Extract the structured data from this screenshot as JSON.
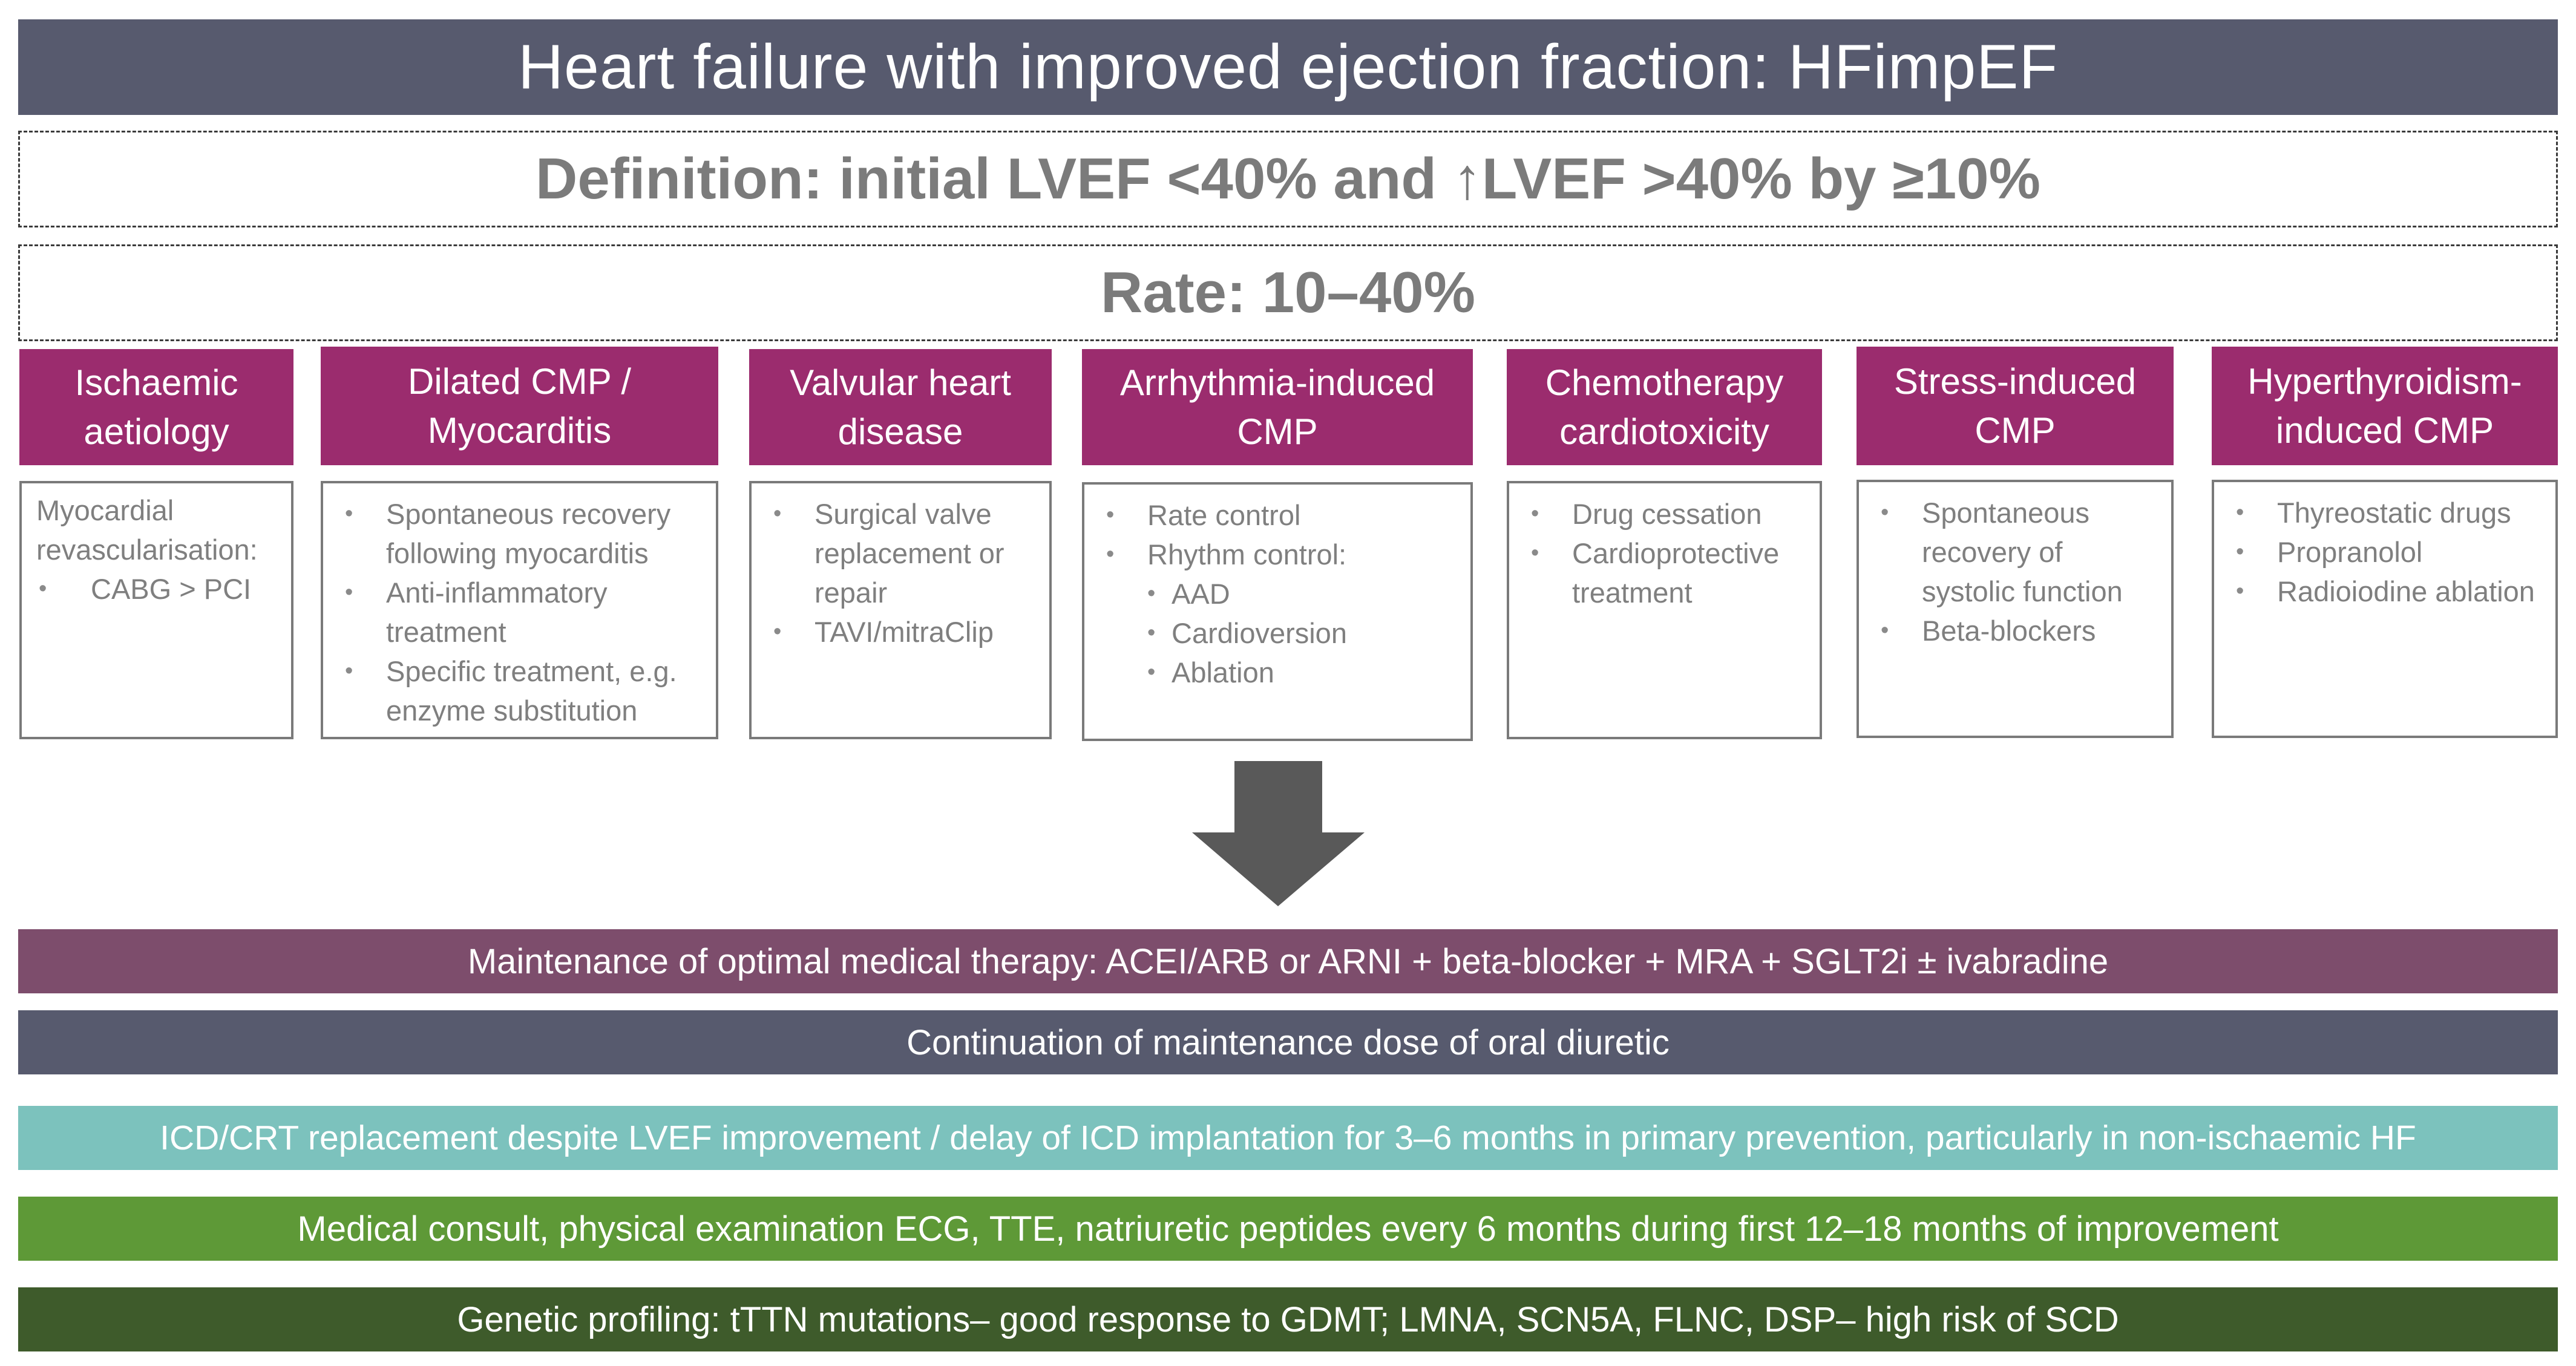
{
  "title": "Heart failure with improved ejection fraction: HFimpEF",
  "definition": "Definition: initial LVEF <40% and ↑LVEF >40% by ≥10%",
  "rate": "Rate: 10–40%",
  "categories": [
    {
      "header": [
        "Ischaemic",
        "aetiology"
      ],
      "intro": [
        "Myocardial",
        "revascularisation:"
      ],
      "items": [
        "CABG > PCI"
      ]
    },
    {
      "header": [
        "Dilated CMP /",
        "Myocarditis"
      ],
      "items": [
        "Spontaneous recovery following myocarditis",
        "Anti-inflammatory treatment",
        "Specific treatment, e.g. enzyme substitution"
      ]
    },
    {
      "header": [
        "Valvular heart",
        "disease"
      ],
      "items": [
        "Surgical valve replacement or repair",
        "TAVI/mitraClip"
      ]
    },
    {
      "header": [
        "Arrhythmia-induced",
        "CMP"
      ],
      "items": [
        "Rate control",
        "Rhythm control:"
      ],
      "subitems": [
        "AAD",
        "Cardioversion",
        "Ablation"
      ]
    },
    {
      "header": [
        "Chemotherapy",
        "cardiotoxicity"
      ],
      "items": [
        "Drug cessation",
        "Cardioprotective treatment"
      ]
    },
    {
      "header": [
        "Stress-induced",
        "CMP"
      ],
      "items": [
        "Spontaneous recovery of systolic function",
        "Beta-blockers"
      ]
    },
    {
      "header": [
        "Hyperthyroidism-",
        "induced CMP"
      ],
      "items": [
        "Thyreostatic drugs",
        "Propranolol",
        "Radioiodine ablation"
      ]
    }
  ],
  "bands": {
    "omt": "Maintenance of optimal medical therapy: ACEI/ARB or ARNI + beta-blocker + MRA + SGLT2i ± ivabradine",
    "diuretic": "Continuation of maintenance dose of oral diuretic",
    "icd": "ICD/CRT replacement despite LVEF improvement / delay of ICD implantation for 3–6 months in primary prevention, particularly in non-ischaemic HF",
    "consult": "Medical consult, physical examination ECG, TTE, natriuretic peptides every 6 months during first 12–18 months of improvement",
    "genetic": "Genetic profiling: tTTN mutations– good response to GDMT; LMNA, SCN5A, FLNC, DSP– high risk of SCD"
  },
  "colors": {
    "title_bg": "#575a6e",
    "category_header_bg": "#9b2c6e",
    "omt_bg": "#7d4d6c",
    "diuretic_bg": "#575a6e",
    "icd_bg": "#7cc2bd",
    "consult_bg": "#5e9937",
    "genetic_bg": "#3e5b2b",
    "arrow": "#595959"
  }
}
